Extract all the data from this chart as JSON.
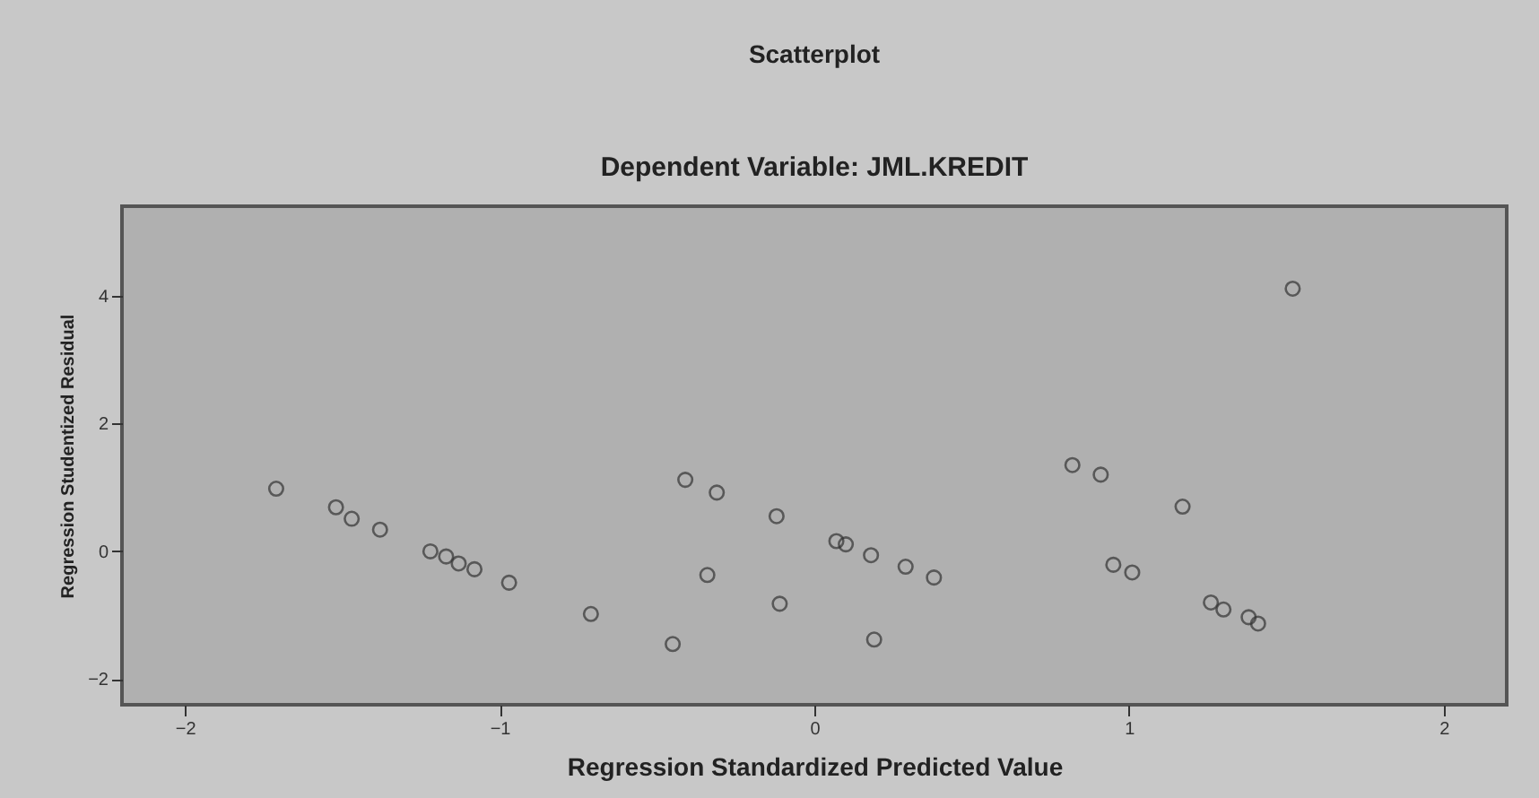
{
  "chart_data": {
    "type": "scatter",
    "title": "Scatterplot",
    "subtitle": "Dependent Variable: JML.KREDIT",
    "xlabel": "Regression Standardized Predicted Value",
    "ylabel": "Regression Studentized Residual",
    "xlim": [
      -2.2,
      2.2
    ],
    "xticks": [
      -2,
      -1,
      0,
      1,
      2
    ],
    "ylim": [
      -2.4,
      5.4
    ],
    "yticks": [
      -2,
      0,
      2,
      4
    ],
    "grid": false,
    "marker": "circle",
    "series": [
      {
        "color": "#333333",
        "x": [
          -1.71,
          -1.52,
          -1.47,
          -1.38,
          -1.22,
          -1.17,
          -1.13,
          -1.08,
          -0.97,
          -0.71,
          -0.45,
          -0.41,
          -0.31,
          -0.34,
          -0.12,
          -0.11,
          0.07,
          0.1,
          0.18,
          0.29,
          0.38,
          0.19,
          0.82,
          0.91,
          0.95,
          1.01,
          1.17,
          1.26,
          1.3,
          1.38,
          1.41,
          1.52
        ],
        "values": [
          0.98,
          0.69,
          0.51,
          0.34,
          0.0,
          -0.08,
          -0.19,
          -0.28,
          -0.49,
          -0.98,
          -1.45,
          1.12,
          0.92,
          -0.37,
          0.55,
          -0.82,
          0.16,
          0.11,
          -0.06,
          -0.24,
          -0.41,
          -1.38,
          1.35,
          1.2,
          -0.21,
          -0.33,
          0.7,
          -0.8,
          -0.91,
          -1.03,
          -1.13,
          4.11
        ]
      }
    ]
  }
}
